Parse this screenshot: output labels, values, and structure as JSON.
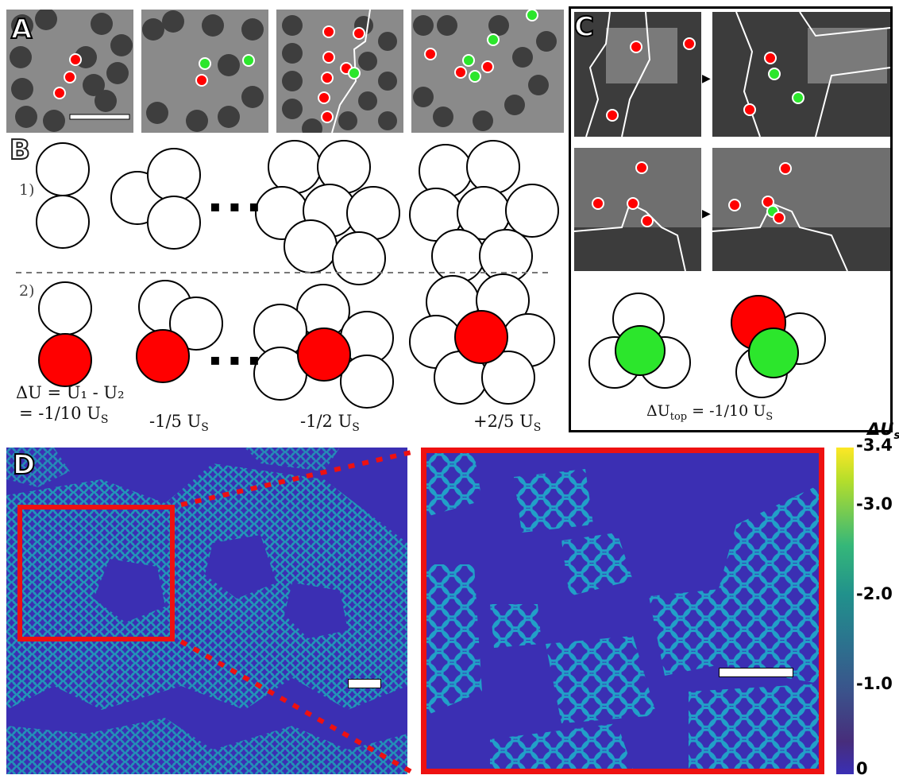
{
  "panels": {
    "A": {
      "label": "A"
    },
    "B": {
      "label": "B",
      "row1_label": "1)",
      "row2_label": "2)",
      "ellipsis": "▪ ▪ ▪"
    },
    "C": {
      "label": "C"
    },
    "D": {
      "label": "D"
    }
  },
  "energies": {
    "first_line1": "ΔU = U₁ - U₂",
    "first_line2": "= -1/10 U",
    "second": "-1/5 U",
    "third": "-1/2 U",
    "fourth": "+2/5 U",
    "subscript": "S",
    "panelC": "ΔU",
    "panelC_sub": "top",
    "panelC_rest": " = -1/10 U"
  },
  "colorbar": {
    "title": "ΔU",
    "title_sub": "s",
    "ticks": [
      "-3.4",
      "-3.0",
      "-2.0",
      "-1.0",
      "0"
    ],
    "colors": [
      "#fde725",
      "#35b779",
      "#21918c",
      "#3b528b",
      "#3a2fb5"
    ]
  },
  "colors": {
    "particle_red": "#ff0000",
    "particle_green": "#2ce62c",
    "highlight_box": "#ee1111",
    "map_background": "#3b2fb3"
  }
}
